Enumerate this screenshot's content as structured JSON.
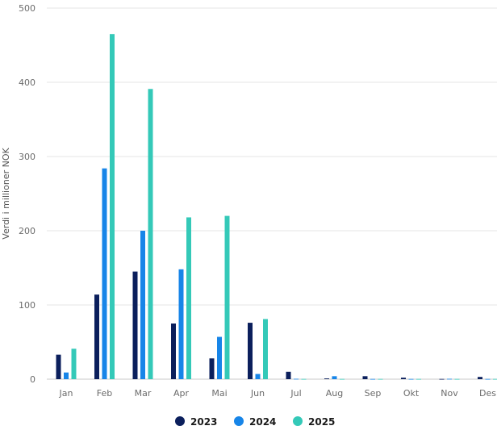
{
  "chart_data": {
    "type": "bar",
    "ylabel": "Verdi i millioner NOK",
    "ylim": [
      0,
      500
    ],
    "yticks": [
      0,
      100,
      200,
      300,
      400,
      500
    ],
    "grid": true,
    "legend_position": "bottom",
    "categories": [
      "Jan",
      "Feb",
      "Mar",
      "Apr",
      "Mai",
      "Jun",
      "Jul",
      "Aug",
      "Sep",
      "Okt",
      "Nov",
      "Des"
    ],
    "series": [
      {
        "name": "2023",
        "color": "#0b1f5c",
        "values": [
          33,
          114,
          145,
          75,
          28,
          76,
          10,
          1,
          4,
          2,
          0.3,
          3
        ]
      },
      {
        "name": "2024",
        "color": "#1785e8",
        "values": [
          9,
          284,
          200,
          148,
          57,
          7,
          0.5,
          4,
          0.3,
          0.3,
          0.5,
          0.3
        ]
      },
      {
        "name": "2025",
        "color": "#34c9b8",
        "values": [
          41,
          465,
          391,
          218,
          220,
          81,
          0.3,
          0.3,
          0.3,
          0.3,
          0.3,
          0.3
        ]
      }
    ]
  }
}
